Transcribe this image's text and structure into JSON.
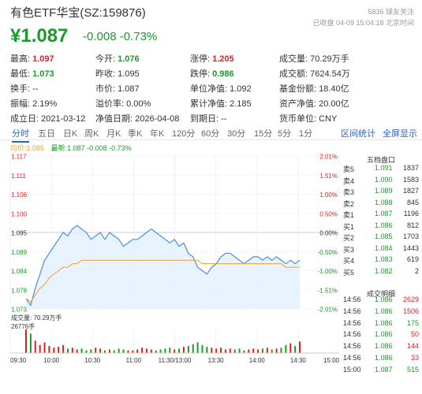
{
  "header": {
    "title": "有色ETF华宝(SZ:159876)",
    "price": "¥1.087",
    "change": "-0.008",
    "change_pct": "-0.73%",
    "followers": "5836 球友关注",
    "status": "已收盘 04-09 15:04:18 北京时间"
  },
  "metrics": [
    [
      {
        "label": "最高:",
        "value": "1.097",
        "tone": "up"
      },
      {
        "label": "今开:",
        "value": "1.076",
        "tone": "down"
      },
      {
        "label": "涨停:",
        "value": "1.205",
        "tone": "up"
      },
      {
        "label": "成交量:",
        "value": "70.29万手",
        "tone": ""
      }
    ],
    [
      {
        "label": "最低:",
        "value": "1.073",
        "tone": "down"
      },
      {
        "label": "昨收:",
        "value": "1.095",
        "tone": ""
      },
      {
        "label": "跌停:",
        "value": "0.986",
        "tone": "down"
      },
      {
        "label": "成交额:",
        "value": "7624.54万",
        "tone": ""
      }
    ],
    [
      {
        "label": "换手:",
        "value": "--",
        "tone": ""
      },
      {
        "label": "市价:",
        "value": "1.087",
        "tone": ""
      },
      {
        "label": "单位净值:",
        "value": "1.092",
        "tone": ""
      },
      {
        "label": "基金份额:",
        "value": "18.40亿",
        "tone": ""
      }
    ],
    [
      {
        "label": "振幅:",
        "value": "2.19%",
        "tone": ""
      },
      {
        "label": "溢价率:",
        "value": "0.00%",
        "tone": ""
      },
      {
        "label": "累计净值:",
        "value": "2.185",
        "tone": ""
      },
      {
        "label": "资产净值:",
        "value": "20.00亿",
        "tone": ""
      }
    ],
    [
      {
        "label": "成立日:",
        "value": "2021-03-12",
        "tone": ""
      },
      {
        "label": "净值日期:",
        "value": "2026-04-08",
        "tone": ""
      },
      {
        "label": "到期日:",
        "value": "--",
        "tone": ""
      },
      {
        "label": "货币单位:",
        "value": "CNY",
        "tone": ""
      }
    ]
  ],
  "tabs": [
    "分时",
    "五日",
    "日K",
    "周K",
    "月K",
    "季K",
    "年K",
    "120分",
    "60分",
    "30分",
    "15分",
    "5分",
    "1分"
  ],
  "links": {
    "stats": "区间统计",
    "fullscreen": "全屏显示"
  },
  "legend": {
    "avg_label": "均价:",
    "avg_value": "1.085",
    "latest_label": "最新:",
    "latest_value": "1.087",
    "latest_change": "-0.008",
    "latest_pct": "-0.73%"
  },
  "volume_label": "成交量: 70.29万手",
  "volume_scale": "26776手",
  "chart_data": {
    "type": "line",
    "y_ticks": [
      "1.117",
      "1.111",
      "1.106",
      "1.100",
      "1.095",
      "1.089",
      "1.084",
      "1.078",
      "1.073"
    ],
    "pct_ticks": [
      "2.01%",
      "1.51%",
      "1.00%",
      "0.50%",
      "0.00%",
      "-0.50%",
      "-1.00%",
      "-1.51%",
      "-2.01%"
    ],
    "x_ticks": [
      "09:30",
      "10:00",
      "10:30",
      "11:00",
      "11:30/13:00",
      "13:30",
      "14:00",
      "14:30",
      "15:00"
    ],
    "ylim": [
      1.073,
      1.117
    ],
    "prev_close": 1.095,
    "series": [
      {
        "name": "最新",
        "values": [
          1.076,
          1.074,
          1.079,
          1.083,
          1.087,
          1.089,
          1.091,
          1.093,
          1.095,
          1.094,
          1.096,
          1.097,
          1.096,
          1.095,
          1.093,
          1.094,
          1.095,
          1.093,
          1.095,
          1.094,
          1.093,
          1.091,
          1.092,
          1.093,
          1.093,
          1.094,
          1.095,
          1.096,
          1.095,
          1.094,
          1.093,
          1.092,
          1.093,
          1.091,
          1.092,
          1.089,
          1.088,
          1.085,
          1.084,
          1.083,
          1.085,
          1.086,
          1.088,
          1.089,
          1.089,
          1.088,
          1.087,
          1.086,
          1.087,
          1.088,
          1.088,
          1.087,
          1.088,
          1.087,
          1.088,
          1.087,
          1.086,
          1.087,
          1.086,
          1.087
        ]
      },
      {
        "name": "均价",
        "values": [
          1.076,
          1.075,
          1.077,
          1.079,
          1.08,
          1.082,
          1.083,
          1.084,
          1.085,
          1.085,
          1.086,
          1.086,
          1.087,
          1.087,
          1.087,
          1.087,
          1.087,
          1.087,
          1.087,
          1.087,
          1.087,
          1.087,
          1.087,
          1.087,
          1.087,
          1.087,
          1.087,
          1.087,
          1.087,
          1.087,
          1.087,
          1.087,
          1.087,
          1.087,
          1.087,
          1.087,
          1.087,
          1.087,
          1.086,
          1.086,
          1.086,
          1.086,
          1.086,
          1.086,
          1.086,
          1.086,
          1.086,
          1.086,
          1.086,
          1.086,
          1.086,
          1.086,
          1.086,
          1.086,
          1.086,
          1.086,
          1.085,
          1.085,
          1.085,
          1.085
        ]
      }
    ],
    "volume": [
      26776,
      22000,
      14000,
      9000,
      12000,
      8000,
      6000,
      7000,
      9000,
      5000,
      6000,
      4000,
      5000,
      3000,
      4000,
      6000,
      5000,
      3000,
      4000,
      3000,
      5000,
      4000,
      3000,
      3000,
      4000,
      6000,
      5000,
      4000,
      3000,
      4000,
      5000,
      6000,
      4000,
      5000,
      7000,
      8000,
      10000,
      12000,
      9000,
      7000,
      6000,
      5000,
      6000,
      4000,
      5000,
      4000,
      5000,
      3000,
      4000,
      5000,
      4000,
      5000,
      6000,
      4000,
      5000,
      6000,
      9000,
      11000,
      8000,
      13000
    ]
  },
  "order_book": {
    "title": "五档盘口",
    "rows": [
      {
        "side": "卖5",
        "price": "1.091",
        "vol": "1837",
        "tone": "down"
      },
      {
        "side": "卖4",
        "price": "1.090",
        "vol": "1583",
        "tone": "down"
      },
      {
        "side": "卖3",
        "price": "1.089",
        "vol": "1827",
        "tone": "down"
      },
      {
        "side": "卖2",
        "price": "1.088",
        "vol": "845",
        "tone": "down"
      },
      {
        "side": "卖1",
        "price": "1.087",
        "vol": "1196",
        "tone": "down"
      },
      {
        "side": "买1",
        "price": "1.086",
        "vol": "812",
        "tone": "down"
      },
      {
        "side": "买2",
        "price": "1.085",
        "vol": "1703",
        "tone": "down"
      },
      {
        "side": "买3",
        "price": "1.084",
        "vol": "1443",
        "tone": "down"
      },
      {
        "side": "买4",
        "price": "1.083",
        "vol": "619",
        "tone": "down"
      },
      {
        "side": "买5",
        "price": "1.082",
        "vol": "2",
        "tone": "down"
      }
    ]
  },
  "trade_detail": {
    "title": "成交明细",
    "rows": [
      {
        "time": "14:56",
        "price": "1.086",
        "vol": "2629",
        "tone": "up"
      },
      {
        "time": "14:56",
        "price": "1.086",
        "vol": "1506",
        "tone": "up"
      },
      {
        "time": "14:56",
        "price": "1.086",
        "vol": "175",
        "tone": "down"
      },
      {
        "time": "14:56",
        "price": "1.086",
        "vol": "50",
        "tone": "up"
      },
      {
        "time": "14:56",
        "price": "1.086",
        "vol": "144",
        "tone": "up"
      },
      {
        "time": "14:56",
        "price": "1.086",
        "vol": "33",
        "tone": "up"
      },
      {
        "time": "15:00",
        "price": "1.087",
        "vol": "515",
        "tone": "down"
      }
    ]
  },
  "colors": {
    "up": "#e02020",
    "down": "#1a9a2a",
    "accent": "#2b63c7",
    "price_line": "#4a90e2",
    "avg_line": "#f0a030"
  }
}
